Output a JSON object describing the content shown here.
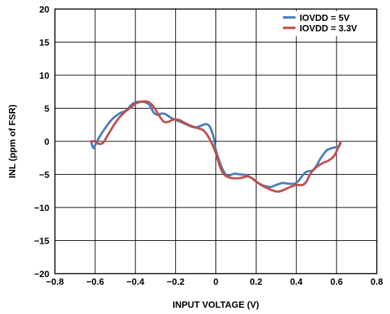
{
  "chart_data": {
    "type": "line",
    "title": "",
    "xlabel": "INPUT VOLTAGE (V)",
    "ylabel": "INL (ppm of FSR)",
    "xlim": [
      -0.8,
      0.8
    ],
    "ylim": [
      -20,
      20
    ],
    "xticks": [
      "−0.8",
      "−0.6",
      "−0.4",
      "−0.2",
      "0",
      "0.2",
      "0.4",
      "0.6",
      "0.8"
    ],
    "xtick_values": [
      -0.8,
      -0.6,
      -0.4,
      -0.2,
      0,
      0.2,
      0.4,
      0.6,
      0.8
    ],
    "yticks": [
      "20",
      "15",
      "10",
      "5",
      "0",
      "−5",
      "−10",
      "−15",
      "−20"
    ],
    "ytick_values": [
      20,
      15,
      10,
      5,
      0,
      -5,
      -10,
      -15,
      -20
    ],
    "grid": true,
    "legend_position": "top-right",
    "series": [
      {
        "name": "IOVDD = 5V",
        "color": "#4a7ebb",
        "points": [
          [
            -0.62,
            0.0
          ],
          [
            -0.61,
            -1.0
          ],
          [
            -0.6,
            -0.6
          ],
          [
            -0.58,
            0.6
          ],
          [
            -0.55,
            2.0
          ],
          [
            -0.52,
            3.2
          ],
          [
            -0.48,
            4.2
          ],
          [
            -0.45,
            4.6
          ],
          [
            -0.42,
            5.5
          ],
          [
            -0.4,
            5.9
          ],
          [
            -0.37,
            6.0
          ],
          [
            -0.35,
            5.9
          ],
          [
            -0.33,
            5.5
          ],
          [
            -0.31,
            4.4
          ],
          [
            -0.29,
            4.0
          ],
          [
            -0.27,
            4.2
          ],
          [
            -0.25,
            4.1
          ],
          [
            -0.22,
            3.5
          ],
          [
            -0.18,
            3.0
          ],
          [
            -0.15,
            2.6
          ],
          [
            -0.12,
            2.2
          ],
          [
            -0.1,
            2.1
          ],
          [
            -0.07,
            2.4
          ],
          [
            -0.05,
            2.6
          ],
          [
            -0.03,
            2.2
          ],
          [
            -0.01,
            0.5
          ],
          [
            0.0,
            -1.3
          ],
          [
            0.02,
            -3.2
          ],
          [
            0.04,
            -4.6
          ],
          [
            0.06,
            -5.2
          ],
          [
            0.09,
            -4.9
          ],
          [
            0.12,
            -5.0
          ],
          [
            0.15,
            -5.1
          ],
          [
            0.18,
            -5.6
          ],
          [
            0.2,
            -6.1
          ],
          [
            0.23,
            -6.6
          ],
          [
            0.27,
            -6.9
          ],
          [
            0.3,
            -6.6
          ],
          [
            0.33,
            -6.3
          ],
          [
            0.36,
            -6.4
          ],
          [
            0.39,
            -6.4
          ],
          [
            0.41,
            -6.0
          ],
          [
            0.43,
            -5.2
          ],
          [
            0.45,
            -4.6
          ],
          [
            0.48,
            -4.4
          ],
          [
            0.5,
            -3.7
          ],
          [
            0.52,
            -2.6
          ],
          [
            0.55,
            -1.4
          ],
          [
            0.58,
            -1.0
          ],
          [
            0.61,
            -0.8
          ],
          [
            0.62,
            -0.2
          ]
        ]
      },
      {
        "name": "IOVDD = 3.3V",
        "color": "#c0504d",
        "points": [
          [
            -0.62,
            0.0
          ],
          [
            -0.6,
            0.0
          ],
          [
            -0.58,
            -0.4
          ],
          [
            -0.56,
            -0.2
          ],
          [
            -0.54,
            0.8
          ],
          [
            -0.51,
            2.3
          ],
          [
            -0.48,
            3.6
          ],
          [
            -0.45,
            4.5
          ],
          [
            -0.42,
            5.2
          ],
          [
            -0.4,
            5.7
          ],
          [
            -0.37,
            6.0
          ],
          [
            -0.34,
            6.0
          ],
          [
            -0.32,
            5.6
          ],
          [
            -0.3,
            4.8
          ],
          [
            -0.28,
            3.8
          ],
          [
            -0.26,
            3.0
          ],
          [
            -0.24,
            2.9
          ],
          [
            -0.21,
            3.3
          ],
          [
            -0.18,
            3.2
          ],
          [
            -0.15,
            2.7
          ],
          [
            -0.12,
            2.3
          ],
          [
            -0.09,
            2.0
          ],
          [
            -0.06,
            1.6
          ],
          [
            -0.03,
            0.3
          ],
          [
            0.0,
            -1.8
          ],
          [
            0.02,
            -3.8
          ],
          [
            0.04,
            -5.0
          ],
          [
            0.07,
            -5.5
          ],
          [
            0.1,
            -5.6
          ],
          [
            0.13,
            -5.5
          ],
          [
            0.16,
            -5.3
          ],
          [
            0.19,
            -5.8
          ],
          [
            0.22,
            -6.5
          ],
          [
            0.25,
            -7.0
          ],
          [
            0.28,
            -7.4
          ],
          [
            0.31,
            -7.6
          ],
          [
            0.34,
            -7.3
          ],
          [
            0.37,
            -6.9
          ],
          [
            0.4,
            -6.6
          ],
          [
            0.43,
            -6.6
          ],
          [
            0.45,
            -6.1
          ],
          [
            0.47,
            -4.9
          ],
          [
            0.5,
            -3.9
          ],
          [
            0.53,
            -3.3
          ],
          [
            0.56,
            -2.9
          ],
          [
            0.59,
            -2.1
          ],
          [
            0.62,
            -0.1
          ]
        ]
      }
    ]
  }
}
